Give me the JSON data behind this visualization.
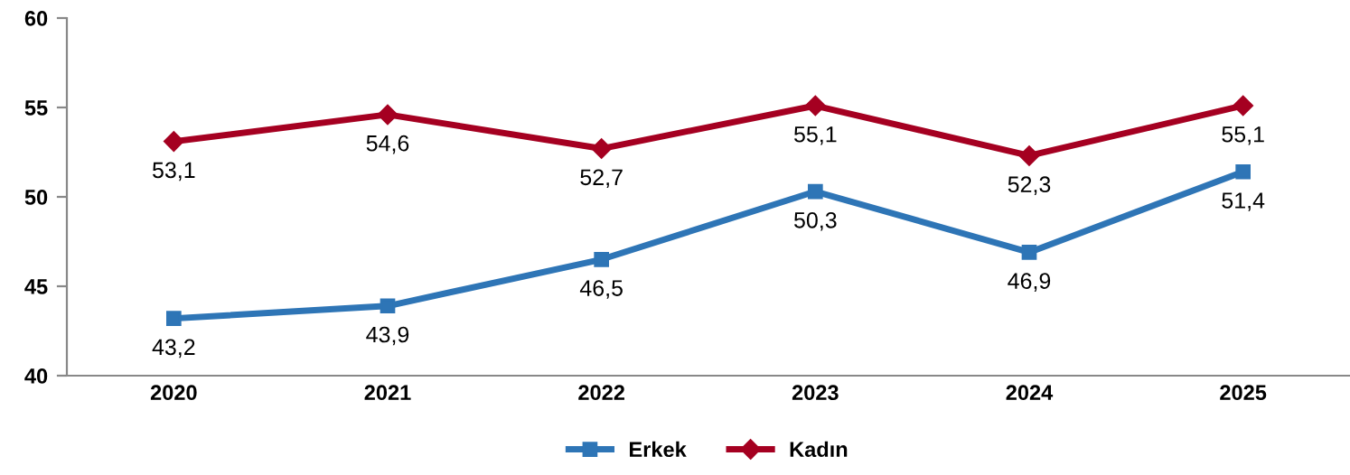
{
  "chart_data": {
    "type": "line",
    "categories": [
      "2020",
      "2021",
      "2022",
      "2023",
      "2024",
      "2025"
    ],
    "series": [
      {
        "name": "Erkek",
        "color": "#2e75b6",
        "marker": "square",
        "values": [
          43.2,
          43.9,
          46.5,
          50.3,
          46.9,
          51.4
        ],
        "value_labels": [
          "43,2",
          "43,9",
          "46,5",
          "50,3",
          "46,9",
          "51,4"
        ]
      },
      {
        "name": "Kadın",
        "color": "#a50021",
        "marker": "diamond",
        "values": [
          53.1,
          54.6,
          52.7,
          55.1,
          52.3,
          55.1
        ],
        "value_labels": [
          "53,1",
          "54,6",
          "52,7",
          "55,1",
          "52,3",
          "55,1"
        ]
      }
    ],
    "ylim": [
      40,
      60
    ],
    "yticks": [
      40,
      45,
      50,
      55,
      60
    ],
    "grid": false,
    "legend": "bottom",
    "line_style": "solid"
  }
}
